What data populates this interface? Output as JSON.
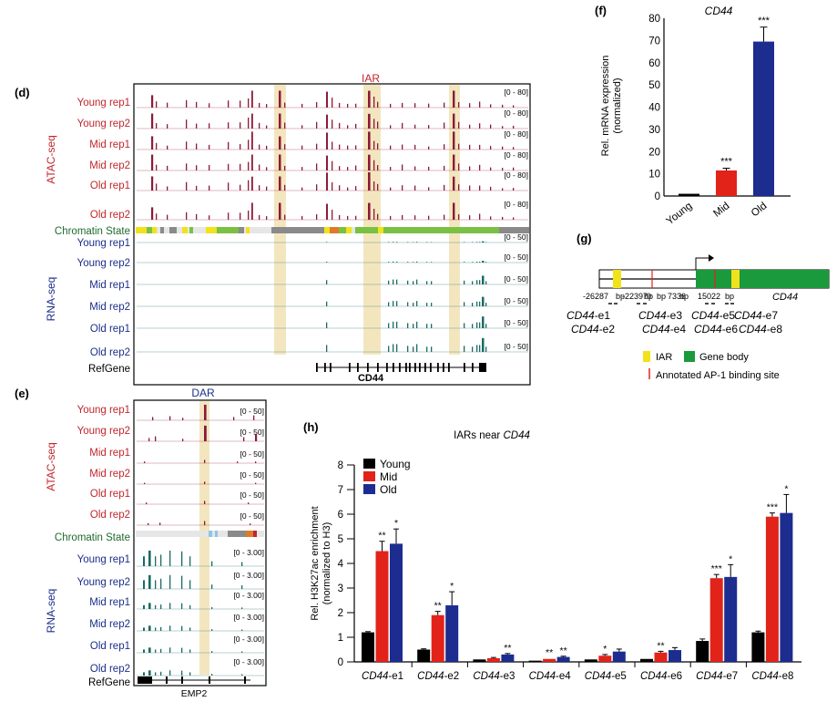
{
  "colors": {
    "atac": "#8b1a3a",
    "rna": "#1a6b66",
    "highlight": "#f3e6bf",
    "young": "#000000",
    "mid": "#e2231a",
    "old": "#1d2c8f",
    "chrom_green": "#7ac143",
    "chrom_yellow": "#f2e21b",
    "chrom_gray": "#8a8a8a",
    "gene_green": "#1a9a3c",
    "ap1_red": "#e2231a",
    "label_red": "#c1272d",
    "label_blue": "#1b2f8a",
    "label_green": "#1e6b2e"
  },
  "panel_d": {
    "letter": "(d)",
    "region_label": "IAR",
    "assay_atac": "ATAC-seq",
    "assay_rna": "RNA-seq",
    "chromatin_label": "Chromatin State",
    "refgene_label": "RefGene",
    "gene": "CD44",
    "atac_tracks": [
      {
        "label": "Young rep1",
        "range": "[0 - 80]"
      },
      {
        "label": "Young rep2",
        "range": "[0 - 80]"
      },
      {
        "label": "Mid rep1",
        "range": "[0 - 80]"
      },
      {
        "label": "Mid rep2",
        "range": "[0 - 80]"
      },
      {
        "label": "Old rep1",
        "range": "[0 - 80]"
      },
      {
        "label": "Old rep2",
        "range": "[0 - 80]"
      }
    ],
    "rna_tracks": [
      {
        "label": "Young rep1",
        "range": "[0 - 50]"
      },
      {
        "label": "Young rep2",
        "range": "[0 - 50]"
      },
      {
        "label": "Mid rep1",
        "range": "[0 - 50]"
      },
      {
        "label": "Mid rep2",
        "range": "[0 - 50]"
      },
      {
        "label": "Old rep1",
        "range": "[0 - 50]"
      },
      {
        "label": "Old rep2",
        "range": "[0 - 50]"
      }
    ]
  },
  "panel_e": {
    "letter": "(e)",
    "region_label": "DAR",
    "assay_atac": "ATAC-seq",
    "assay_rna": "RNA-seq",
    "chromatin_label": "Chromatin State",
    "refgene_label": "RefGene",
    "gene": "EMP2",
    "atac_tracks": [
      {
        "label": "Young rep1",
        "range": "[0 - 50]"
      },
      {
        "label": "Young rep2",
        "range": "[0 - 50]"
      },
      {
        "label": "Mid rep1",
        "range": "[0 - 50]"
      },
      {
        "label": "Mid rep2",
        "range": "[0 - 50]"
      },
      {
        "label": "Old rep1",
        "range": "[0 - 50]"
      },
      {
        "label": "Old rep2",
        "range": "[0 - 50]"
      }
    ],
    "rna_tracks": [
      {
        "label": "Young rep1",
        "range": "[0 - 3.00]"
      },
      {
        "label": "Young rep2",
        "range": "[0 - 3.00]"
      },
      {
        "label": "Mid rep1",
        "range": "[0 - 3.00]"
      },
      {
        "label": "Mid rep2",
        "range": "[0 - 3.00]"
      },
      {
        "label": "Old rep1",
        "range": "[0 - 3.00]"
      },
      {
        "label": "Old rep2",
        "range": "[0 - 3.00]"
      }
    ]
  },
  "panel_g": {
    "letter": "(g)",
    "gene": "CD44",
    "positions": [
      "-26287",
      "bp",
      "-22397",
      "bp",
      "0",
      "bp",
      "7336",
      "bp",
      "15022",
      "bp"
    ],
    "primers_row1": [
      "CD44-e1",
      "CD44-e3",
      "CD44-e5",
      "CD44-e7"
    ],
    "primers_row2": [
      "CD44-e2",
      "CD44-e4",
      "CD44-e6",
      "CD44-e8"
    ],
    "legend_iar": "IAR",
    "legend_gene_body": "Gene body",
    "legend_ap1": "Annotated AP-1 binding site"
  },
  "chart_data": [
    {
      "panel": "(f)",
      "type": "bar",
      "title": "CD44",
      "ylabel": "Rel. mRNA expression\n(normalized)",
      "categories": [
        "Young",
        "Mid",
        "Old"
      ],
      "values": [
        1,
        11.5,
        69.5
      ],
      "errors": [
        0,
        1,
        6.5
      ],
      "significance": [
        "",
        "***",
        "***"
      ],
      "ylim": [
        0,
        80
      ],
      "yticks": [
        0,
        10,
        20,
        30,
        40,
        50,
        60,
        70,
        80
      ]
    },
    {
      "panel": "(h)",
      "type": "bar",
      "title": "IARs near CD44",
      "ylabel": "Rel. H3K27ac enrichment\n(normalized to H3)",
      "categories": [
        "CD44-e1",
        "CD44-e2",
        "CD44-e3",
        "CD44-e4",
        "CD44-e5",
        "CD44-e6",
        "CD44-e7",
        "CD44-e8"
      ],
      "ylim": [
        0,
        8
      ],
      "yticks": [
        0,
        1,
        2,
        3,
        4,
        5,
        6,
        7,
        8
      ],
      "legend": "top-left",
      "series": [
        {
          "name": "Young",
          "values": [
            1.2,
            0.5,
            0.1,
            0.05,
            0.1,
            0.12,
            0.85,
            1.2
          ],
          "errors": [
            0.03,
            0.03,
            0.02,
            0.01,
            0.02,
            0.02,
            0.08,
            0.05
          ],
          "significance": [
            "",
            "",
            "",
            "",
            "",
            "",
            "",
            ""
          ]
        },
        {
          "name": "Mid",
          "values": [
            4.5,
            1.9,
            0.15,
            0.12,
            0.25,
            0.38,
            3.4,
            5.9
          ],
          "errors": [
            0.4,
            0.15,
            0.03,
            0.02,
            0.05,
            0.05,
            0.15,
            0.15
          ],
          "significance": [
            "**",
            "**",
            "",
            "**",
            "*",
            "**",
            "***",
            "***"
          ]
        },
        {
          "name": "Old",
          "values": [
            4.8,
            2.3,
            0.3,
            0.2,
            0.42,
            0.48,
            3.45,
            6.05
          ],
          "errors": [
            0.6,
            0.55,
            0.04,
            0.03,
            0.1,
            0.1,
            0.5,
            0.75
          ],
          "significance": [
            "*",
            "*",
            "**",
            "**",
            "",
            "",
            "*",
            "*"
          ]
        }
      ]
    }
  ]
}
